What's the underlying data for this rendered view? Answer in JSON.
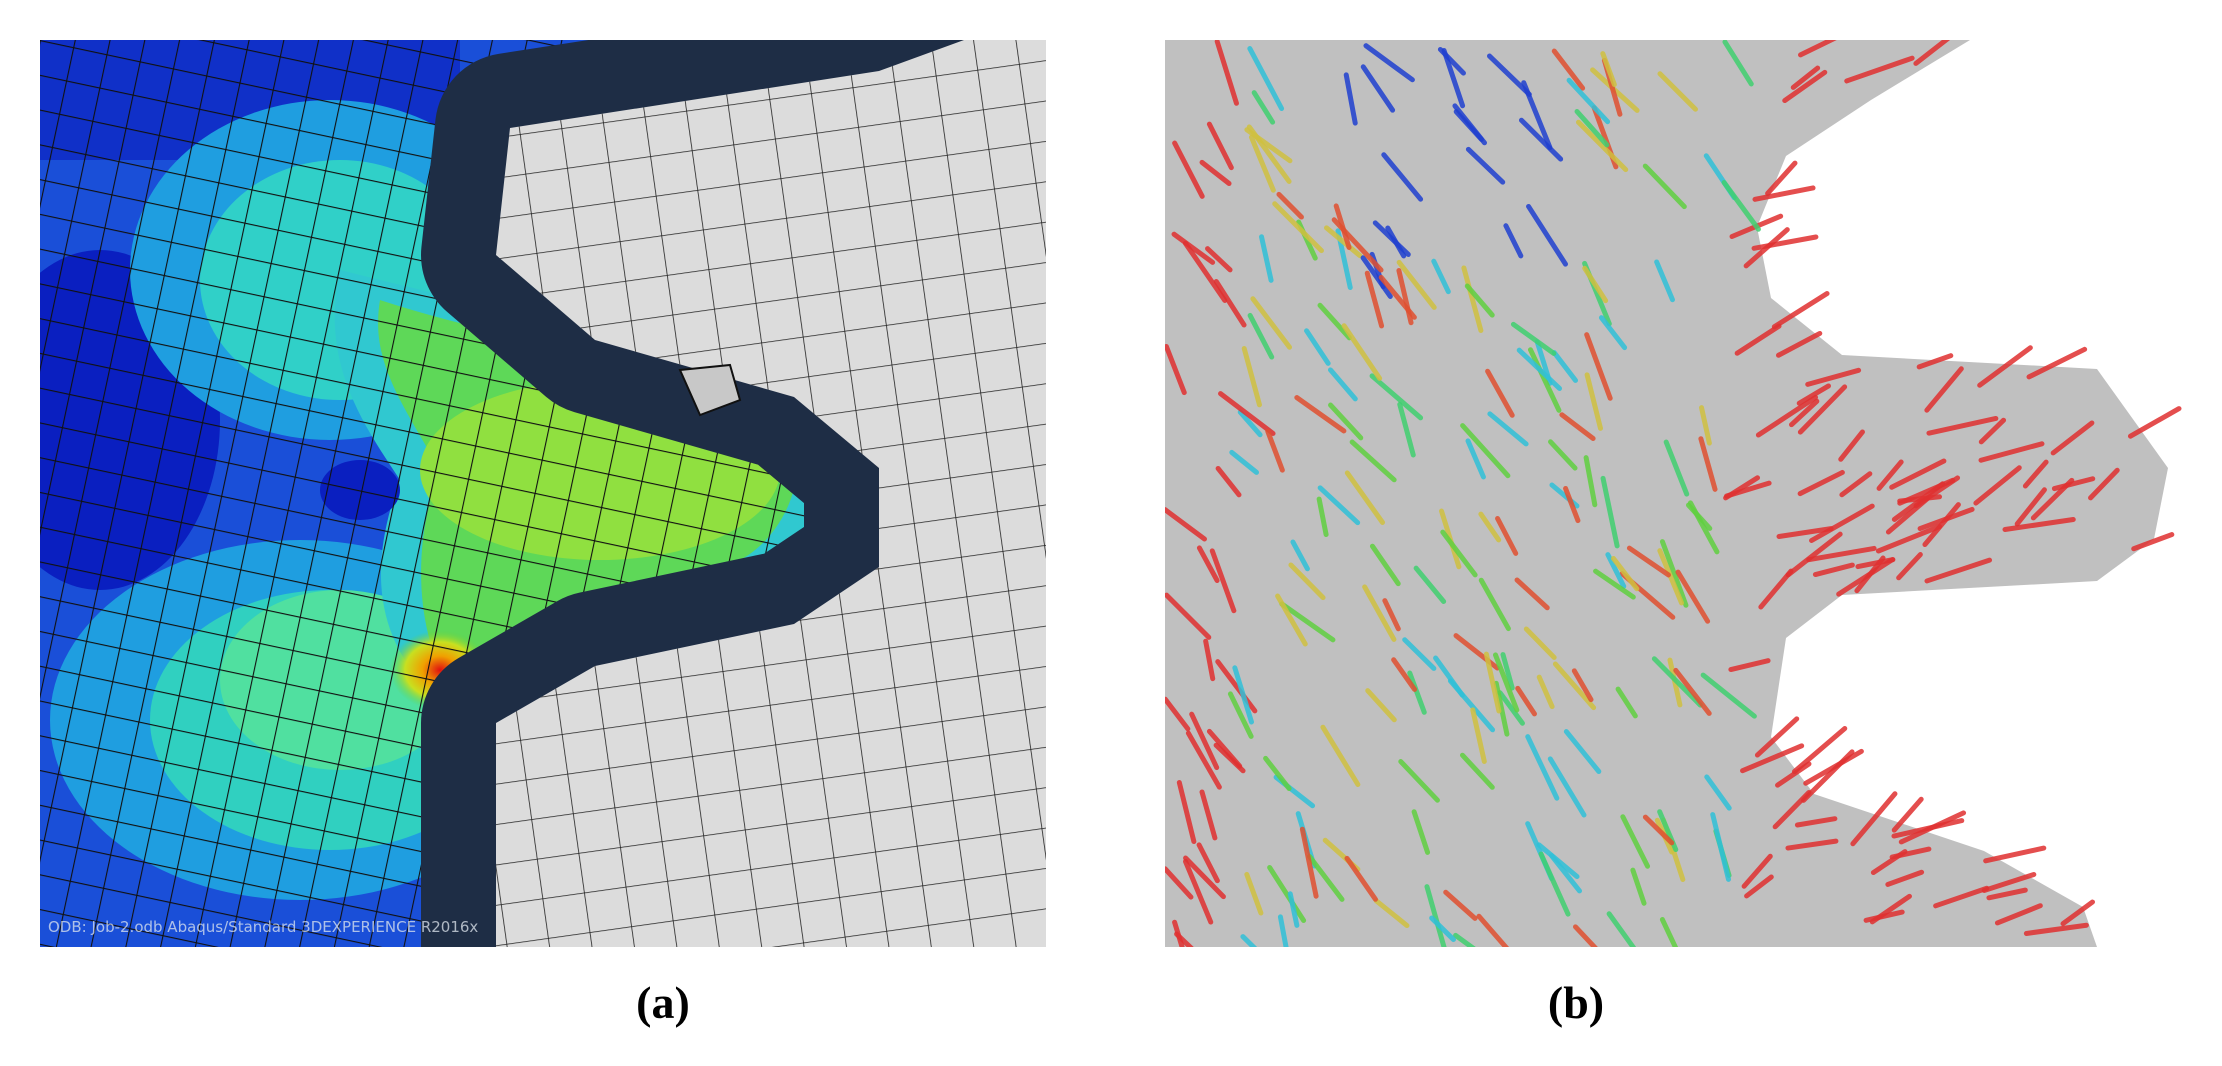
{
  "figure": {
    "panels": [
      {
        "label": "(a)",
        "annotation": "ODB: Job-2.odb    Abaqus/Standard 3DEXPERIENCE R2016x"
      },
      {
        "label": "(b)"
      }
    ]
  }
}
